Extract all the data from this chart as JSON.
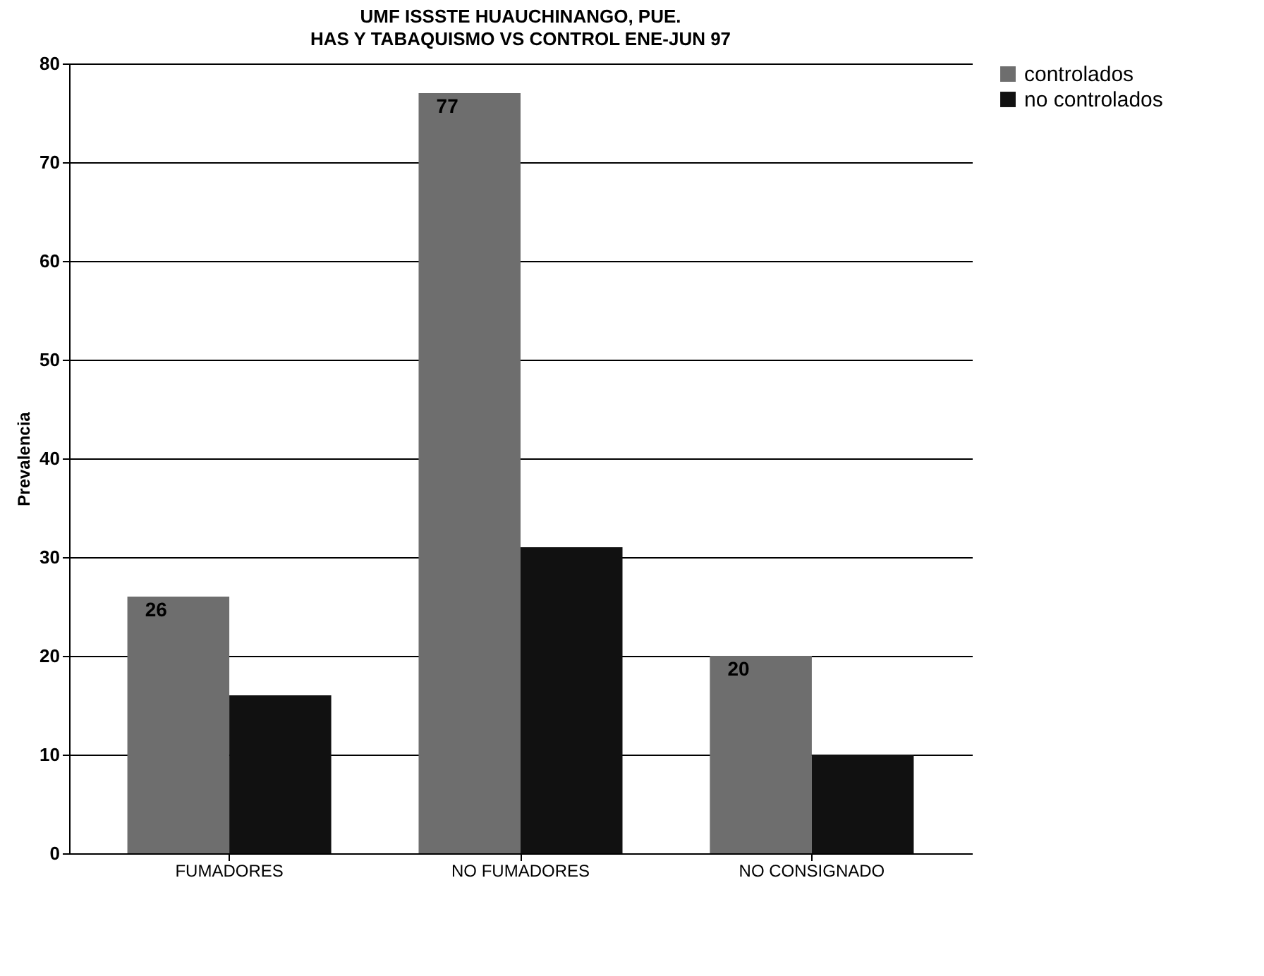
{
  "chart_data": {
    "type": "bar",
    "title": "UMF ISSSTE HUAUCHINANGO, PUE.",
    "subtitle": "HAS Y TABAQUISMO VS CONTROL ENE-JUN 97",
    "ylabel": "Prevalencia",
    "categories": [
      "FUMADORES",
      "NO FUMADORES",
      "NO CONSIGNADO"
    ],
    "series": [
      {
        "name": "controlados",
        "color": "#6e6e6e",
        "values": [
          26,
          77,
          20
        ],
        "value_labels": [
          "26",
          "77",
          "20"
        ]
      },
      {
        "name": "no controlados",
        "color": "#111111",
        "values": [
          16,
          31,
          10
        ]
      }
    ],
    "ylim": [
      0,
      80
    ],
    "yticks": [
      0,
      10,
      20,
      30,
      40,
      50,
      60,
      70,
      80
    ],
    "grid": "y",
    "legend": "right"
  }
}
